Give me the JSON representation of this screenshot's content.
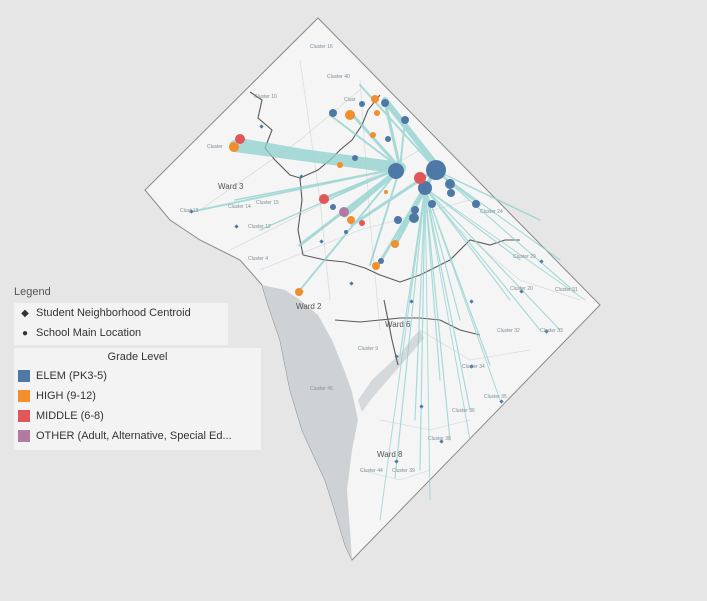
{
  "legend": {
    "title": "Legend",
    "shapes": [
      {
        "symbol": "diamond",
        "label": "Student Neighborhood Centroid"
      },
      {
        "symbol": "circle",
        "label": "School Main Location"
      }
    ],
    "grade_level": {
      "title": "Grade Level",
      "items": [
        {
          "label": "ELEM (PK3-5)",
          "color": "#4e79a7"
        },
        {
          "label": "HIGH (9-12)",
          "color": "#f28e2b"
        },
        {
          "label": "MIDDLE (6-8)",
          "color": "#e15759"
        },
        {
          "label": "OTHER (Adult, Alternative, Special Ed...",
          "color": "#b07aa1"
        }
      ]
    }
  },
  "map": {
    "ward_labels": [
      "Ward 3",
      "Ward 2",
      "Ward 6",
      "Ward 8"
    ],
    "cluster_labels": [
      "Cluster 16",
      "Cluster 40",
      "Cluster 10",
      "Clust",
      "Cluster",
      "Clust 13",
      "Cluster 14",
      "Cluster 15",
      "Cluster 12",
      "Cluster 4",
      "Cluster 24",
      "Cluster 29",
      "Cluster 20",
      "Cluster 31",
      "Cluster 32",
      "Cluster 33",
      "Cluster 9",
      "Cluster 34",
      "Cluster 35",
      "Cluster 36",
      "Cluster 38",
      "Cluster 44",
      "Cluster 39",
      "Cluster 45"
    ],
    "colors": {
      "land": "#f4f4f4",
      "water": "#d0d3d6",
      "flow": "#8ed0cc",
      "ward_border": "#555555",
      "outline": "#888888"
    }
  }
}
